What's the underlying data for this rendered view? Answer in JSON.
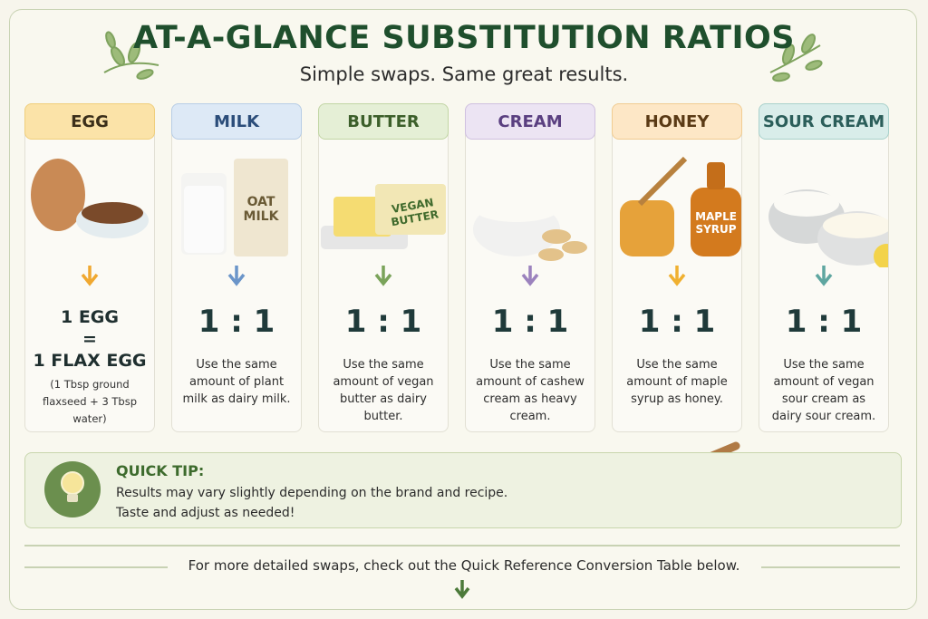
{
  "header": {
    "title": "AT-A-GLANCE SUBSTITUTION RATIOS",
    "subtitle": "Simple swaps. Same great results."
  },
  "cards": [
    {
      "label": "EGG",
      "ratio_lines": [
        "1 EGG",
        "=",
        "1 FLAX EGG"
      ],
      "note": "(1 Tbsp ground flaxseed + 3 Tbsp water)"
    },
    {
      "label": "MILK",
      "image_label": "OAT MILK",
      "ratio": "1 : 1",
      "description": "Use the same amount of plant milk as dairy milk."
    },
    {
      "label": "BUTTER",
      "image_label": "VEGAN BUTTER",
      "ratio": "1 : 1",
      "description": "Use the same amount of vegan butter as dairy butter."
    },
    {
      "label": "CREAM",
      "ratio": "1 : 1",
      "description": "Use the same amount of cashew cream as heavy cream."
    },
    {
      "label": "HONEY",
      "image_label": "MAPLE SYRUP",
      "ratio": "1 : 1",
      "description": "Use the same amount of maple syrup as honey."
    },
    {
      "label": "SOUR CREAM",
      "ratio": "1 : 1",
      "description": "Use the same amount of vegan sour cream as dairy sour cream."
    }
  ],
  "tip": {
    "title": "QUICK TIP:",
    "lines": [
      "Results may vary slightly depending on the brand and recipe.",
      "Taste and adjust as needed!"
    ]
  },
  "footer": {
    "text": "For more detailed swaps, check out the Quick Reference Conversion Table below."
  }
}
